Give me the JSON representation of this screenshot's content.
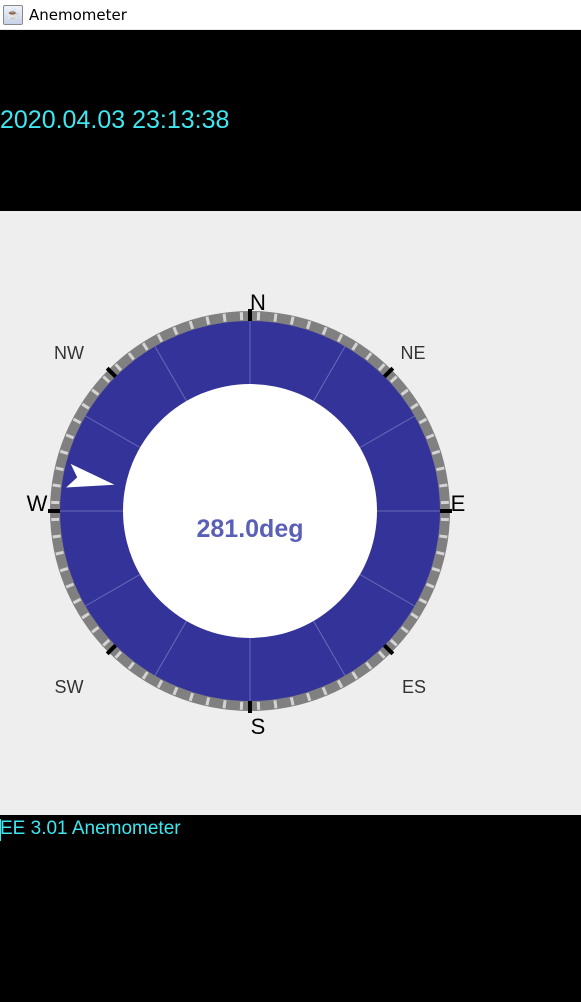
{
  "window": {
    "title": "Anemometer",
    "icon": "java-coffee-cup-icon"
  },
  "header": {
    "datetime": "2020.04.03 23:13:38"
  },
  "gauge": {
    "direction_deg": 281.0,
    "readout": "281.0deg",
    "cardinals": {
      "n": "N",
      "e": "E",
      "s": "S",
      "w": "W"
    },
    "intercardinals": {
      "ne": "NE",
      "nw": "NW",
      "sw": "SW",
      "es": "ES"
    },
    "colors": {
      "ring": "#333399",
      "readout": "#5a5fb8",
      "pointer": "#ffffff",
      "bezel": "#808080",
      "panel": "#eeeeee"
    }
  },
  "status": {
    "text": "EE 3.01 Anemometer"
  },
  "colors": {
    "accent_text": "#3fe7f0",
    "background": "#000000"
  }
}
